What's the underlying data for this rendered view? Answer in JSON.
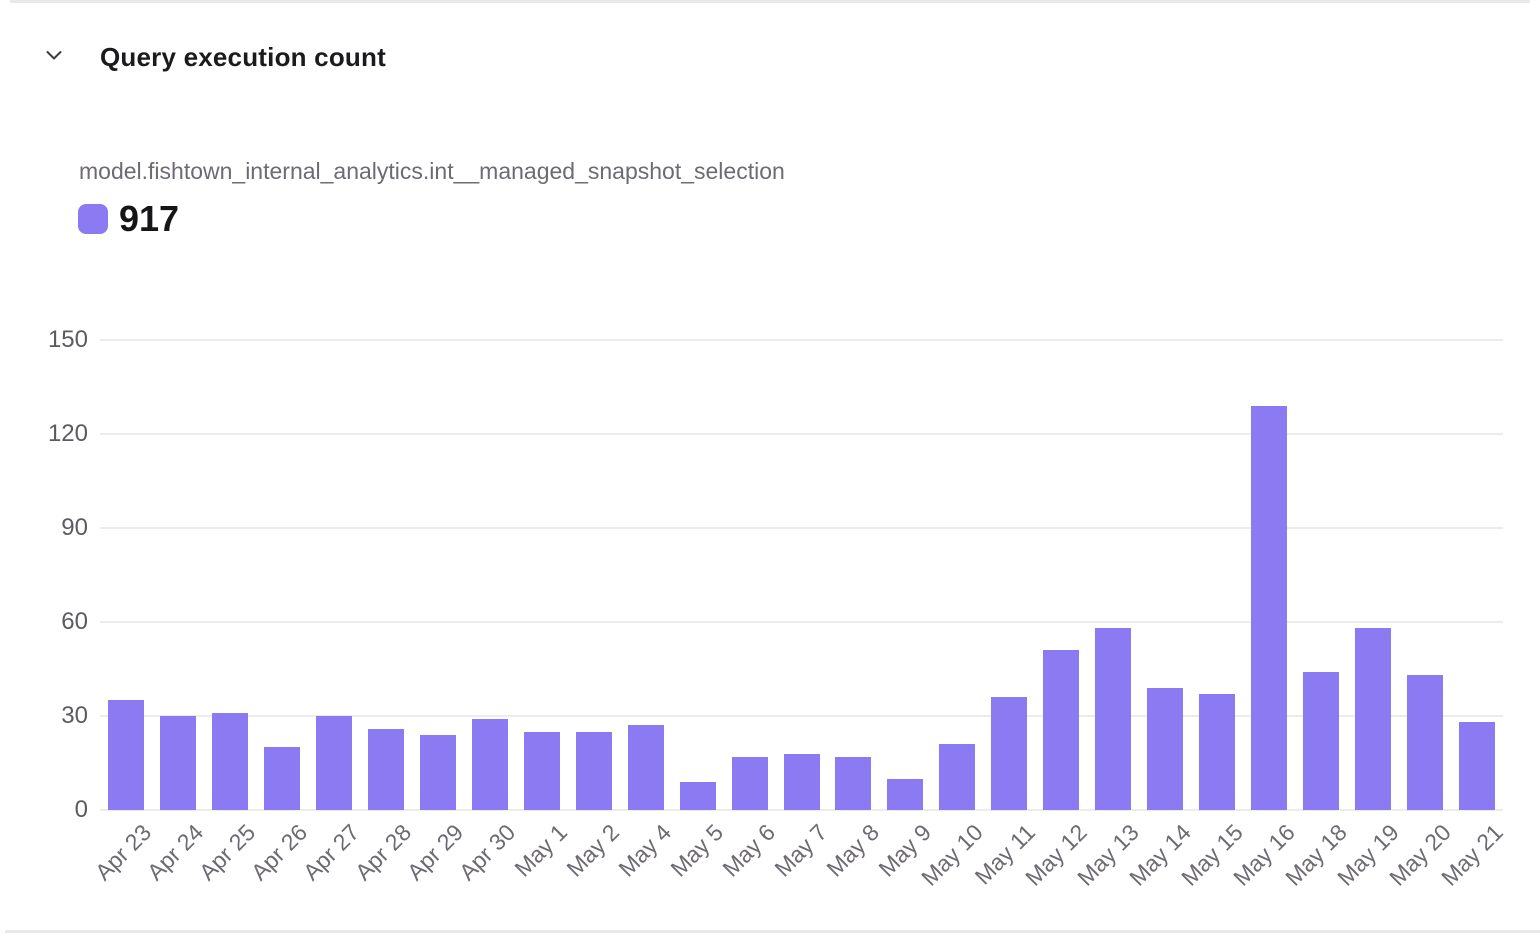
{
  "header": {
    "title": "Query execution count",
    "collapse_icon": "chevron-down"
  },
  "legend": {
    "series_name": "model.fishtown_internal_analytics.int__managed_snapshot_selection",
    "total": "917"
  },
  "colors": {
    "bar": "#8b7af2",
    "grid": "#ececec",
    "border": "#e9e9e9"
  },
  "chart_data": {
    "type": "bar",
    "title": "Query execution count",
    "categories": [
      "Apr 23",
      "Apr 24",
      "Apr 25",
      "Apr 26",
      "Apr 27",
      "Apr 28",
      "Apr 29",
      "Apr 30",
      "May 1",
      "May 2",
      "May 4",
      "May 5",
      "May 6",
      "May 7",
      "May 8",
      "May 9",
      "May 10",
      "May 11",
      "May 12",
      "May 13",
      "May 14",
      "May 15",
      "May 16",
      "May 18",
      "May 19",
      "May 20",
      "May 21"
    ],
    "series": [
      {
        "name": "model.fishtown_internal_analytics.int__managed_snapshot_selection",
        "values": [
          35,
          30,
          31,
          20,
          30,
          26,
          24,
          29,
          25,
          25,
          27,
          9,
          17,
          18,
          17,
          10,
          21,
          36,
          51,
          58,
          39,
          37,
          129,
          44,
          58,
          43,
          28
        ],
        "total": 917,
        "color": "#8b7af2"
      }
    ],
    "xlabel": "",
    "ylabel": "",
    "ylim": [
      0,
      150
    ],
    "yticks": [
      0,
      30,
      60,
      90,
      120,
      150
    ],
    "grid": true,
    "legend_position": "top-left",
    "x_tick_rotation": -45
  }
}
